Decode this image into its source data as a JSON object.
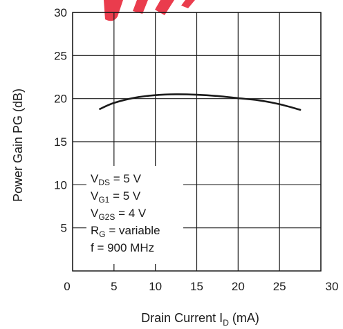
{
  "chart_data": {
    "type": "line",
    "title": "",
    "xlabel": {
      "main": "Drain Current I",
      "sub": "D",
      "unit": " (mA)"
    },
    "ylabel": "Power Gain PG (dB)",
    "xlim": [
      0,
      30
    ],
    "ylim": [
      0,
      30
    ],
    "xticks": [
      "0",
      "5",
      "10",
      "15",
      "20",
      "25",
      "30"
    ],
    "yticks": [
      "5",
      "10",
      "15",
      "20",
      "25",
      "30"
    ],
    "grid": true,
    "series": [
      {
        "x": [
          3.3,
          5,
          7.5,
          10,
          12.5,
          15,
          17.5,
          20,
          22.5,
          25,
          27.5
        ],
        "y": [
          18.8,
          19.5,
          20.1,
          20.4,
          20.5,
          20.45,
          20.3,
          20.05,
          19.8,
          19.35,
          18.7
        ]
      }
    ],
    "annotations": [
      {
        "main": "V",
        "sub": "DS",
        "rest": " = 5 V"
      },
      {
        "main": "V",
        "sub": "G1",
        "rest": " = 5 V"
      },
      {
        "main": "V",
        "sub": "G2S",
        "rest": " = 4 V"
      },
      {
        "main": "R",
        "sub": "G",
        "rest": " = variable"
      },
      {
        "main": "f = 900 MHz",
        "sub": "",
        "rest": ""
      }
    ],
    "colors": {
      "line": "#1a1a1a",
      "grid": "#1a1a1a",
      "watermark": "#e8283a"
    }
  }
}
